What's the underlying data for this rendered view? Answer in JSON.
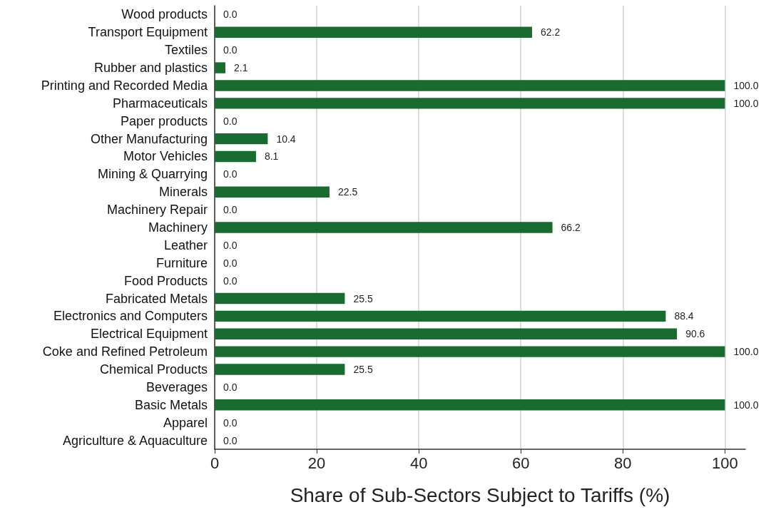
{
  "chart_data": {
    "type": "bar",
    "orientation": "horizontal",
    "xlabel": "Share of Sub-Sectors Subject to Tariffs (%)",
    "categories": [
      "Wood products",
      "Transport Equipment",
      "Textiles",
      "Rubber and plastics",
      "Printing and Recorded Media",
      "Pharmaceuticals",
      "Paper products",
      "Other Manufacturing",
      "Motor Vehicles",
      "Mining & Quarrying",
      "Minerals",
      "Machinery Repair",
      "Machinery",
      "Leather",
      "Furniture",
      "Food Products",
      "Fabricated Metals",
      "Electronics and Computers",
      "Electrical Equipment",
      "Coke and Refined Petroleum",
      "Chemical Products",
      "Beverages",
      "Basic Metals",
      "Apparel",
      "Agriculture & Aquaculture"
    ],
    "values": [
      0,
      62.2,
      0,
      2.1,
      100,
      100,
      0,
      10.4,
      8.1,
      0,
      22.5,
      0,
      66.2,
      0,
      0,
      0,
      25.5,
      88.4,
      90.6,
      100,
      25.5,
      0,
      100,
      0,
      0
    ],
    "value_labels": [
      "0.0",
      "62.2",
      "0.0",
      "2.1",
      "100.0",
      "100.0",
      "0.0",
      "10.4",
      "8.1",
      "0.0",
      "22.5",
      "0.0",
      "66.2",
      "0.0",
      "0.0",
      "0.0",
      "25.5",
      "88.4",
      "90.6",
      "100.0",
      "25.5",
      "0.0",
      "100.0",
      "0.0",
      "0.0"
    ],
    "color": "#1a6b2f",
    "xlim": [
      0,
      104
    ],
    "xticks": [
      0,
      20,
      40,
      60,
      80,
      100
    ],
    "grid": "x"
  }
}
